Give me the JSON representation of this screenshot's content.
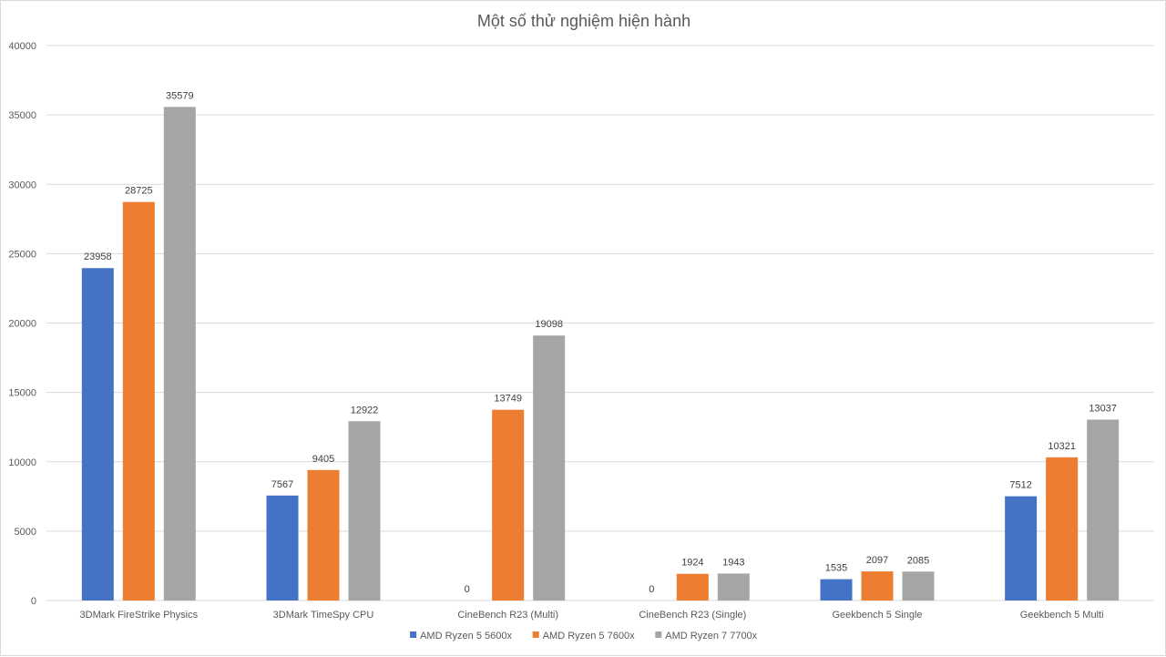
{
  "chart_data": {
    "type": "bar",
    "title": "Một số thử nghiệm hiện hành",
    "xlabel": "",
    "ylabel": "",
    "ylim": [
      0,
      40000
    ],
    "yticks": [
      0,
      5000,
      10000,
      15000,
      20000,
      25000,
      30000,
      35000,
      40000
    ],
    "grid": true,
    "legend_position": "bottom",
    "categories": [
      "3DMark FireStrike Physics",
      "3DMark TimeSpy CPU",
      "CineBench R23 (Multi)",
      "CineBench R23 (Single)",
      "Geekbench 5 Single",
      "Geekbench 5 Multi"
    ],
    "series": [
      {
        "name": "AMD Ryzen 5 5600x",
        "color": "#4472c4",
        "values": [
          23958,
          7567,
          0,
          0,
          1535,
          7512
        ]
      },
      {
        "name": "AMD Ryzen 5 7600x",
        "color": "#ed7d31",
        "values": [
          28725,
          9405,
          13749,
          1924,
          2097,
          10321
        ]
      },
      {
        "name": "AMD Ryzen 7 7700x",
        "color": "#a5a5a5",
        "values": [
          35579,
          12922,
          19098,
          1943,
          2085,
          13037
        ]
      }
    ],
    "data_labels": [
      [
        "23958",
        "7567",
        "0",
        "0",
        "1535",
        "7512"
      ],
      [
        "28725",
        "9405",
        "13749",
        "1924",
        "2097",
        "10321"
      ],
      [
        "35579",
        "12922",
        "19098",
        "1943",
        "2085",
        "13037"
      ]
    ]
  }
}
